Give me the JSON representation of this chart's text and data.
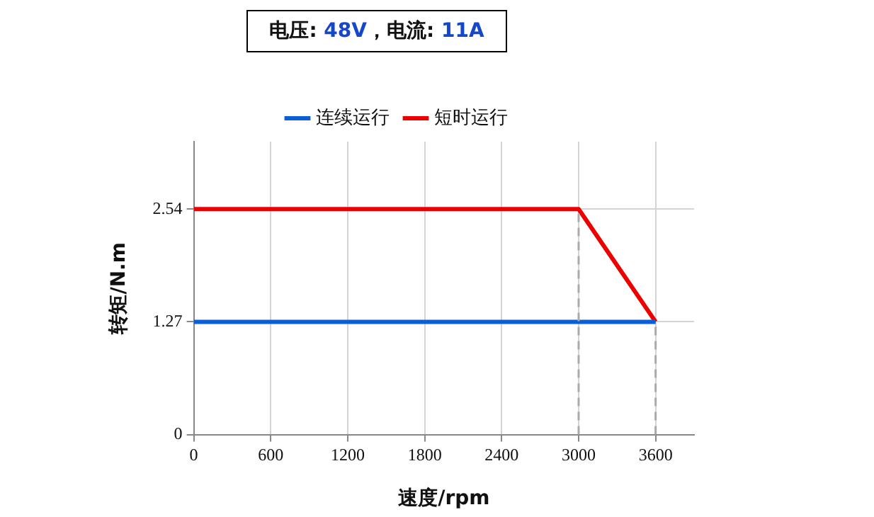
{
  "chart_data": {
    "type": "line",
    "title": "电压: 48V，电流: 11A",
    "xlabel": "速度/rpm",
    "ylabel": "转矩/N.m",
    "xlim": [
      0,
      3900
    ],
    "xticks": [
      0,
      600,
      1200,
      1800,
      2400,
      3000,
      3600
    ],
    "ylim": [
      0,
      3.3
    ],
    "yticks": [
      0,
      1.27,
      2.54
    ],
    "series": [
      {
        "name": "连续运行",
        "color": "#0a5fd6",
        "x": [
          0,
          3600
        ],
        "values": [
          1.27,
          1.27
        ]
      },
      {
        "name": "短时运行",
        "color": "#ee0000",
        "x": [
          0,
          3000,
          3600
        ],
        "values": [
          2.54,
          2.54,
          1.27
        ]
      }
    ],
    "ref_lines": [
      {
        "axis": "x",
        "value": 3000,
        "color": "#aaaaaa",
        "line_style": "dashed"
      },
      {
        "axis": "x",
        "value": 3600,
        "color": "#aaaaaa",
        "line_style": "dashed"
      }
    ],
    "grid": true,
    "legend": "top",
    "marker": "none",
    "line_style": "solid"
  }
}
